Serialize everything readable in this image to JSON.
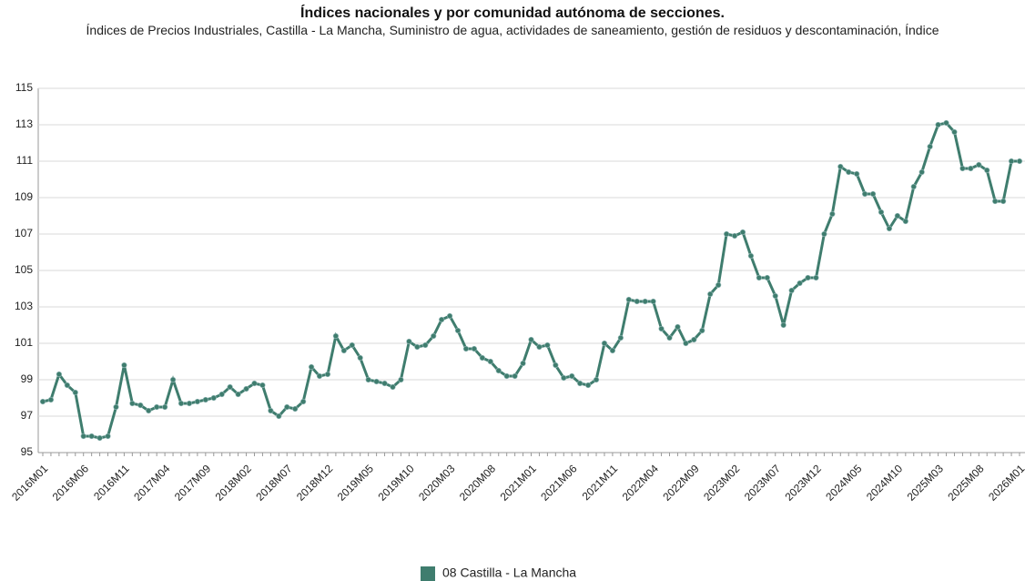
{
  "chart_data": {
    "type": "line",
    "title": "Índices nacionales y por comunidad autónoma de secciones.",
    "subtitle": "Índices de Precios Industriales, Castilla - La Mancha, Suministro de agua, actividades de saneamiento, gestión de residuos y descontaminación, Índice",
    "categories": [
      "2016M01",
      null,
      null,
      null,
      null,
      "2016M06",
      null,
      null,
      null,
      null,
      "2016M11",
      null,
      null,
      null,
      null,
      "2017M04",
      null,
      null,
      null,
      null,
      "2017M09",
      null,
      null,
      null,
      null,
      "2018M02",
      null,
      null,
      null,
      null,
      "2018M07",
      null,
      null,
      null,
      null,
      "2018M12",
      null,
      null,
      null,
      null,
      "2019M05",
      null,
      null,
      null,
      null,
      "2019M10",
      null,
      null,
      null,
      null,
      "2020M03",
      null,
      null,
      null,
      null,
      "2020M08",
      null,
      null,
      null,
      null,
      "2021M01",
      null,
      null,
      null,
      null,
      "2021M06",
      null,
      null,
      null,
      null,
      "2021M11",
      null,
      null,
      null,
      null,
      "2022M04",
      null,
      null,
      null,
      null,
      "2022M09",
      null,
      null,
      null,
      null,
      "2023M02",
      null,
      null,
      null,
      null,
      "2023M07",
      null,
      null,
      null,
      null,
      "2023M12",
      null,
      null,
      null,
      null,
      "2024M05",
      null,
      null,
      null,
      null,
      "2024M10",
      null,
      null,
      null,
      null,
      "2025M03",
      null,
      null,
      null,
      null,
      "2025M08",
      null,
      null,
      null,
      null,
      "2026M01"
    ],
    "series": [
      {
        "name": "08 Castilla - La Mancha",
        "color": "#3f7d6e",
        "values": [
          97.8,
          97.9,
          99.3,
          98.7,
          98.3,
          95.9,
          95.9,
          95.8,
          95.9,
          97.5,
          99.8,
          97.7,
          97.6,
          97.3,
          97.5,
          97.5,
          99.0,
          97.7,
          97.7,
          97.8,
          97.9,
          98.0,
          98.2,
          98.6,
          98.2,
          98.5,
          98.8,
          98.7,
          97.3,
          97.0,
          97.5,
          97.4,
          97.8,
          99.7,
          99.2,
          99.3,
          101.4,
          100.6,
          100.9,
          100.2,
          99.0,
          98.9,
          98.8,
          98.6,
          99.0,
          101.1,
          100.8,
          100.9,
          101.4,
          102.3,
          102.5,
          101.7,
          100.7,
          100.7,
          100.2,
          100.0,
          99.5,
          99.2,
          99.2,
          99.9,
          101.2,
          100.8,
          100.9,
          99.8,
          99.1,
          99.2,
          98.8,
          98.7,
          99.0,
          101.0,
          100.6,
          101.3,
          103.4,
          103.3,
          103.3,
          103.3,
          101.8,
          101.3,
          101.9,
          101.0,
          101.2,
          101.7,
          103.7,
          104.2,
          107.0,
          106.9,
          107.1,
          105.8,
          104.6,
          104.6,
          103.6,
          102.0,
          103.9,
          104.3,
          104.6,
          104.6,
          107.0,
          108.1,
          110.7,
          110.4,
          110.3,
          109.2,
          109.2,
          108.2,
          107.3,
          108.0,
          107.7,
          109.6,
          110.4,
          111.8,
          113.0,
          113.1,
          112.6,
          110.6,
          110.6,
          110.8,
          110.5,
          108.8,
          108.8,
          111.0,
          111.0
        ]
      }
    ],
    "ylim": [
      95,
      115
    ],
    "yticks": [
      95,
      97,
      99,
      101,
      103,
      105,
      107,
      109,
      111,
      113,
      115
    ],
    "grid": true,
    "legend": "bottom"
  }
}
